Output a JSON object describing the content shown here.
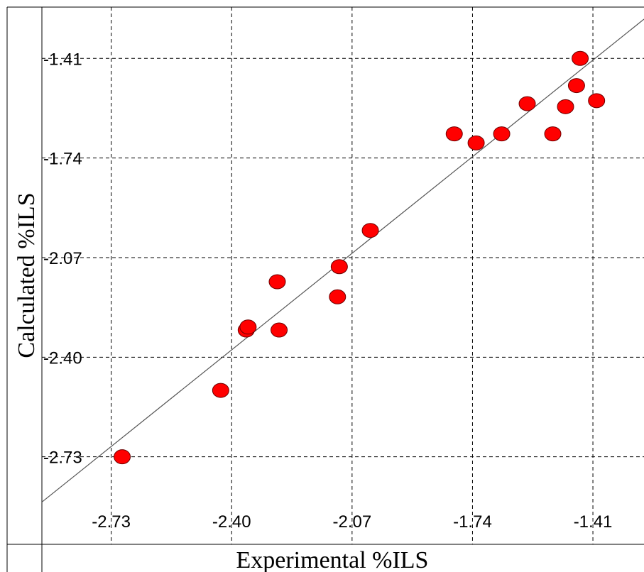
{
  "chart_data": {
    "type": "scatter",
    "xlabel": "Experimental %ILS",
    "ylabel": "Calculated %ILS",
    "xlim": [
      -2.92,
      -1.27
    ],
    "ylim": [
      -3.02,
      -1.24
    ],
    "x_ticks": [
      -2.73,
      -2.4,
      -2.07,
      -1.74,
      -1.41
    ],
    "y_ticks": [
      -1.41,
      -1.74,
      -2.07,
      -2.4,
      -2.73
    ],
    "x_tick_labels": [
      "-2.73",
      "-2.40",
      "-2.07",
      "-1.74",
      "-1.41"
    ],
    "y_tick_labels": [
      "-1.41",
      "-1.74",
      "-2.07",
      "-2.40",
      "-2.73"
    ],
    "grid": true,
    "marker_color": "#ff0000",
    "fit_line": {
      "x": [
        -2.92,
        -1.27
      ],
      "y": [
        -2.88,
        -1.28
      ]
    },
    "series": [
      {
        "points": [
          {
            "x": -2.7,
            "y": -2.73
          },
          {
            "x": -2.43,
            "y": -2.51
          },
          {
            "x": -2.36,
            "y": -2.31
          },
          {
            "x": -2.355,
            "y": -2.3
          },
          {
            "x": -2.27,
            "y": -2.31
          },
          {
            "x": -2.275,
            "y": -2.15
          },
          {
            "x": -2.11,
            "y": -2.2
          },
          {
            "x": -2.105,
            "y": -2.1
          },
          {
            "x": -2.02,
            "y": -1.98
          },
          {
            "x": -1.79,
            "y": -1.66
          },
          {
            "x": -1.73,
            "y": -1.69
          },
          {
            "x": -1.66,
            "y": -1.66
          },
          {
            "x": -1.59,
            "y": -1.56
          },
          {
            "x": -1.52,
            "y": -1.66
          },
          {
            "x": -1.485,
            "y": -1.57
          },
          {
            "x": -1.455,
            "y": -1.5
          },
          {
            "x": -1.445,
            "y": -1.41
          },
          {
            "x": -1.4,
            "y": -1.55
          }
        ]
      }
    ]
  }
}
